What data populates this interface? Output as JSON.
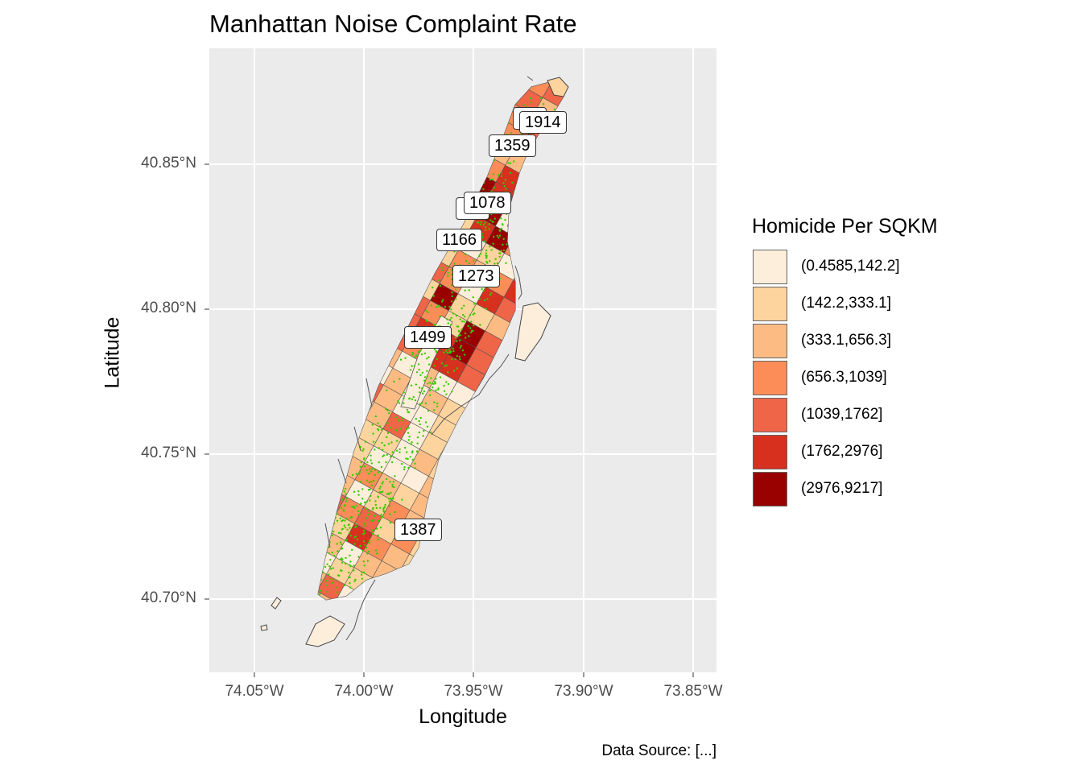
{
  "title": "Manhattan Noise Complaint Rate",
  "axes": {
    "xlabel": "Longitude",
    "ylabel": "Latitude",
    "x_ticks": [
      "74.05°W",
      "74.00°W",
      "73.95°W",
      "73.90°W",
      "73.85°W"
    ],
    "y_ticks": [
      "40.70°N",
      "40.75°N",
      "40.80°N",
      "40.85°N"
    ]
  },
  "legend": {
    "title": "Homicide Per SQKM",
    "items": [
      {
        "label": "(0.4585,142.2]",
        "color": "#fdeedc"
      },
      {
        "label": "(142.2,333.1]",
        "color": "#fdd49e"
      },
      {
        "label": "(333.1,656.3]",
        "color": "#fdbb84"
      },
      {
        "label": "(656.3,1039]",
        "color": "#fc8d59"
      },
      {
        "label": "(1039,1762]",
        "color": "#ef6548"
      },
      {
        "label": "(1762,2976]",
        "color": "#d7301f"
      },
      {
        "label": "(2976,9217]",
        "color": "#990000"
      }
    ]
  },
  "labels": [
    "1914",
    "1359",
    "1078",
    "1166",
    "1273",
    "1499",
    "1387"
  ],
  "caption": "Data Source: [...]",
  "colors": {
    "panel_background": "#ebebeb",
    "grid": "#ffffff",
    "points": "#33cc00"
  }
}
